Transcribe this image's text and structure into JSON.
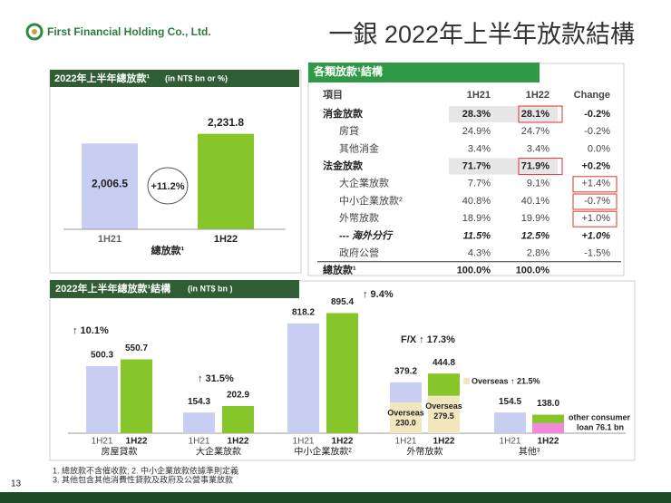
{
  "header": {
    "logo_text": "First Financial Holding Co., Ltd.",
    "title": "一銀 2022年上半年放款結構",
    "page_number": "13"
  },
  "total_chart": {
    "title": "2022年上半年總放款¹",
    "unit": "(in NT$ bn or %)",
    "categories": [
      "1H21",
      "1H22"
    ],
    "values": [
      2006.5,
      2231.8
    ],
    "value_labels": [
      "2,006.5",
      "2,231.8"
    ],
    "colors": [
      "#c8cdf2",
      "#86c62a"
    ],
    "growth": "+11.2%",
    "group_label": "總放款¹"
  },
  "table": {
    "title": "各類放款¹結構",
    "columns": [
      "項目",
      "1H21",
      "1H22",
      "Change"
    ],
    "rows": [
      [
        "消金放款",
        "28.3%",
        "28.1%",
        "-0.2%"
      ],
      [
        "房貸",
        "24.9%",
        "24.7%",
        "-0.2%"
      ],
      [
        "其他消金",
        "3.4%",
        "3.4%",
        "0.0%"
      ],
      [
        "法金放款",
        "71.7%",
        "71.9%",
        "+0.2%"
      ],
      [
        "大企業放款",
        "7.7%",
        "9.1%",
        "+1.4%"
      ],
      [
        "中小企業放款²",
        "40.8%",
        "40.1%",
        "-0.7%"
      ],
      [
        "外幣放款",
        "18.9%",
        "19.9%",
        "+1.0%"
      ],
      [
        "---  海外分行",
        "11.5%",
        "12.5%",
        "+1.0%"
      ],
      [
        "政府公營",
        "4.3%",
        "2.8%",
        "-1.5%"
      ],
      [
        "總放款¹",
        "100.0%",
        "100.0%"
      ]
    ]
  },
  "structure_chart": {
    "title": "2022年上半年總放款¹結構",
    "unit": "(in NT$ bn )",
    "periods": [
      "1H21",
      "1H22"
    ],
    "colors": [
      "#c8cdf2",
      "#86c62a"
    ],
    "groups": [
      {
        "name": "房屋貸款",
        "values": [
          500.3,
          550.7
        ],
        "value_labels": [
          "500.3",
          "550.7"
        ],
        "growth": "↑ 10.1%"
      },
      {
        "name": "大企業放款",
        "values": [
          154.3,
          202.9
        ],
        "value_labels": [
          "154.3",
          "202.9"
        ],
        "growth": "↑  31.5%"
      },
      {
        "name": "中小企業放款²",
        "values": [
          818.2,
          895.4
        ],
        "value_labels": [
          "818.2",
          "895.4"
        ],
        "growth": "↑ 9.4%"
      },
      {
        "name": "外幣放款",
        "values": [
          379.2,
          444.8
        ],
        "value_labels": [
          "379.2",
          "444.8"
        ],
        "growth": "F/X  ↑  17.3%",
        "overseas": {
          "name": "Overseas",
          "values": [
            230.0,
            279.5
          ],
          "value_labels": [
            "230.0",
            "279.5"
          ],
          "growth": "Overseas  ↑  21.5%",
          "color": "#f2e6be"
        }
      },
      {
        "name": "其他³",
        "values": [
          154.5,
          138.0
        ],
        "value_labels": [
          "154.5",
          "138.0"
        ],
        "other_consumer_loan": {
          "value": 76.1,
          "lines": [
            "other consumer",
            "loan  76.1 bn"
          ],
          "color": "#f08ad8"
        }
      }
    ]
  },
  "footnotes": [
    "1. 總放款不含催收款; 2. 中小企業放款依據準則定義",
    "3. 其他包含其他消費性貸款及政府及公營事業放款"
  ]
}
